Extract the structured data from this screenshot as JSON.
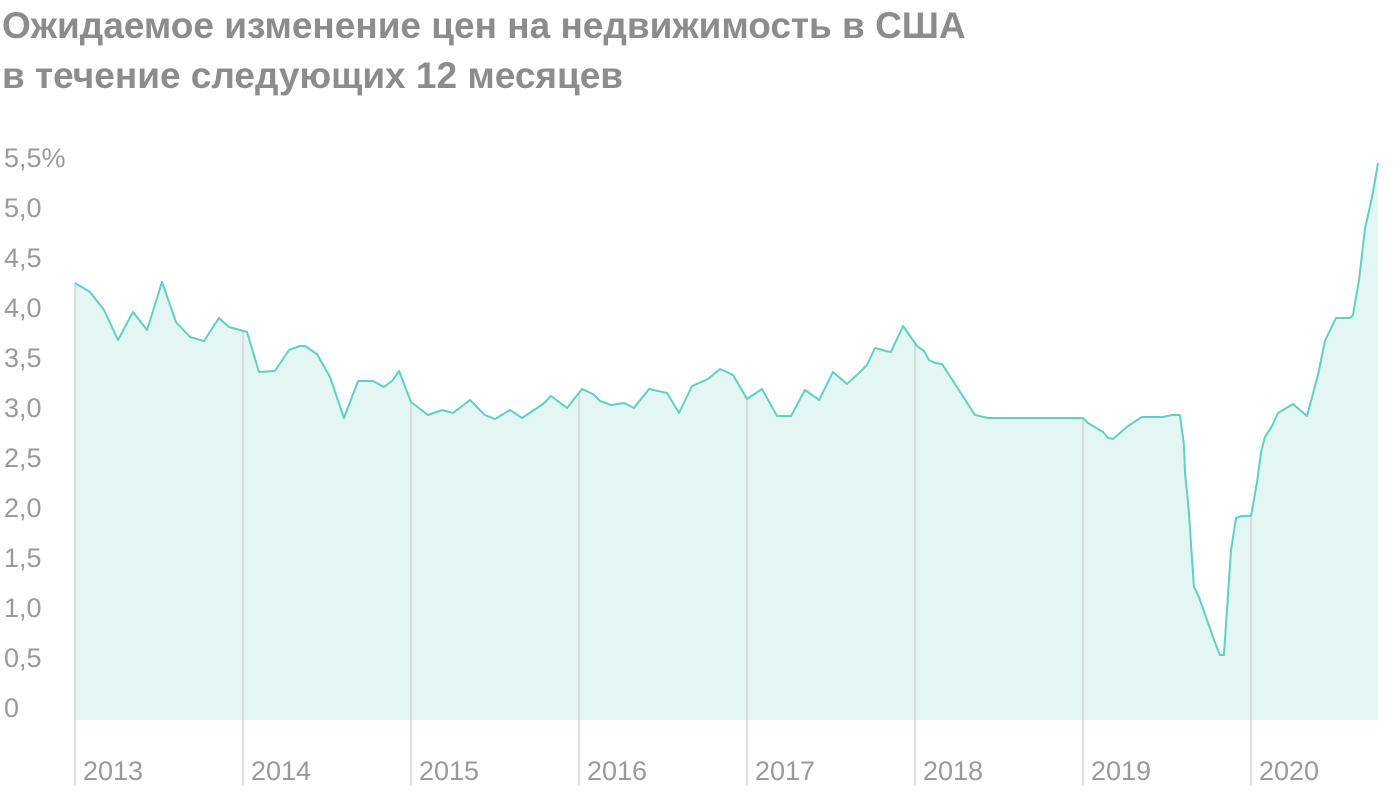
{
  "chart_data": {
    "type": "area",
    "title": [
      "Ожидаемое изменение цен на недвижимость в США",
      "в течение следующих 12 месяцев"
    ],
    "color": "#5fd0c5",
    "fill_color": "#e4f6f4",
    "xlim": [
      2013,
      2020.756
    ],
    "xticks": [
      2013,
      2014,
      2015,
      2016,
      2017,
      2018,
      2019,
      2020
    ],
    "ylim": [
      -0.1,
      5.5
    ],
    "yticks": [
      0,
      {
        "value": 0.5,
        "label": "0,5"
      },
      {
        "value": 1,
        "label": "1,0"
      },
      {
        "value": 1.5,
        "label": "1,5"
      },
      {
        "value": 2,
        "label": "2,0"
      },
      {
        "value": 2.5,
        "label": "2,5"
      },
      {
        "value": 3,
        "label": "3,0"
      },
      {
        "value": 3.5,
        "label": "3,5"
      },
      {
        "value": 4,
        "label": "4,0"
      },
      {
        "value": 4.5,
        "label": "4,5"
      },
      {
        "value": 5,
        "label": "5,0"
      },
      {
        "value": 5.5,
        "label": "5,5%"
      }
    ],
    "x": [
      2013.0,
      2013.089,
      2013.173,
      2013.256,
      2013.345,
      2013.429,
      2013.518,
      2013.601,
      2013.685,
      2013.768,
      2013.857,
      2013.917,
      2014.024,
      2014.095,
      2014.19,
      2014.274,
      2014.339,
      2014.369,
      2014.44,
      2014.518,
      2014.601,
      2014.685,
      2014.774,
      2014.839,
      2014.887,
      2014.929,
      2015.0,
      2015.101,
      2015.185,
      2015.25,
      2015.351,
      2015.44,
      2015.5,
      2015.589,
      2015.661,
      2015.786,
      2015.833,
      2015.929,
      2016.018,
      2016.083,
      2016.125,
      2016.19,
      2016.268,
      2016.327,
      2016.417,
      2016.524,
      2016.595,
      2016.673,
      2016.768,
      2016.839,
      2016.917,
      2017.0,
      2017.089,
      2017.179,
      2017.262,
      2017.345,
      2017.429,
      2017.512,
      2017.595,
      2017.673,
      2017.714,
      2017.762,
      2017.827,
      2017.857,
      2017.929,
      2018.012,
      2018.054,
      2018.083,
      2018.119,
      2018.161,
      2018.357,
      2018.435,
      2019.0,
      2019.03,
      2019.119,
      2019.149,
      2019.179,
      2019.268,
      2019.351,
      2019.476,
      2019.53,
      2019.577,
      2019.601,
      2019.607,
      2019.625,
      2019.637,
      2019.649,
      2019.661,
      2019.69,
      2019.78,
      2019.815,
      2019.839,
      2019.881,
      2019.911,
      2019.946,
      2020.0,
      2020.036,
      2020.06,
      2020.083,
      2020.125,
      2020.161,
      2020.25,
      2020.333,
      2020.399,
      2020.44,
      2020.506,
      2020.589,
      2020.607,
      2020.643,
      2020.679,
      2020.72,
      2020.756
    ],
    "values": [
      4.27,
      4.18,
      4.0,
      3.7,
      3.98,
      3.8,
      4.28,
      3.88,
      3.73,
      3.69,
      3.92,
      3.83,
      3.78,
      3.38,
      3.39,
      3.6,
      3.64,
      3.64,
      3.56,
      3.33,
      2.92,
      3.29,
      3.29,
      3.23,
      3.29,
      3.39,
      3.08,
      2.95,
      3.0,
      2.97,
      3.1,
      2.95,
      2.91,
      3.0,
      2.92,
      3.06,
      3.14,
      3.02,
      3.21,
      3.16,
      3.09,
      3.05,
      3.07,
      3.02,
      3.21,
      3.17,
      2.97,
      3.24,
      3.31,
      3.41,
      3.35,
      3.11,
      3.21,
      2.94,
      2.94,
      3.2,
      3.1,
      3.38,
      3.26,
      3.38,
      3.45,
      3.62,
      3.59,
      3.58,
      3.84,
      3.64,
      3.59,
      3.5,
      3.47,
      3.46,
      2.95,
      2.92,
      2.92,
      2.87,
      2.78,
      2.72,
      2.71,
      2.84,
      2.93,
      2.93,
      2.95,
      2.95,
      2.65,
      2.38,
      2.08,
      1.82,
      1.5,
      1.23,
      1.13,
      0.7,
      0.55,
      0.55,
      1.6,
      1.92,
      1.94,
      1.94,
      2.28,
      2.58,
      2.73,
      2.84,
      2.97,
      3.06,
      2.94,
      3.35,
      3.69,
      3.92,
      3.92,
      3.95,
      4.3,
      4.82,
      5.12,
      5.47
    ]
  }
}
